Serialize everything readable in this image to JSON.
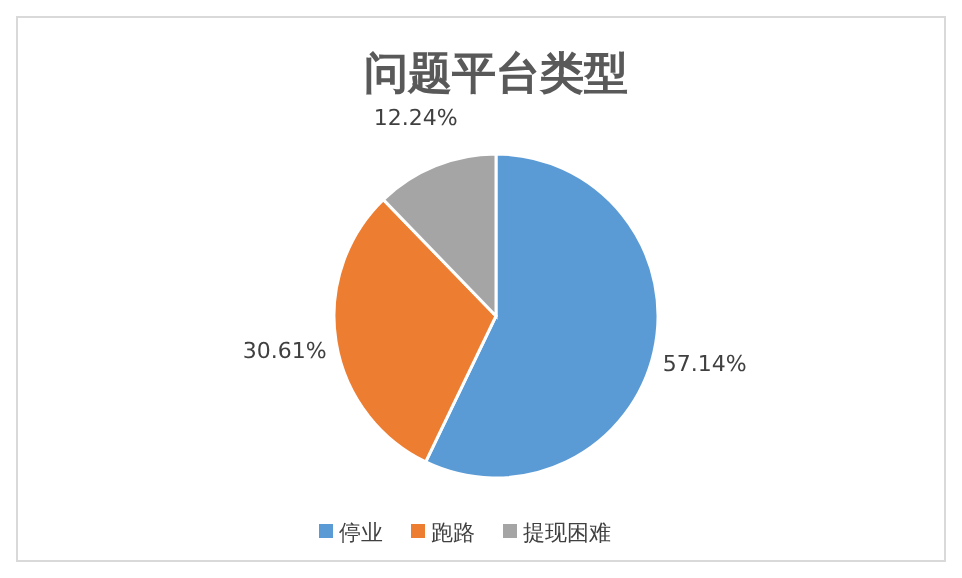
{
  "chart_data": {
    "type": "pie",
    "title": "问题平台类型",
    "categories": [
      "停业",
      "跑路",
      "提现困难"
    ],
    "values": [
      57.14,
      30.61,
      12.24
    ],
    "colors": [
      "#5b9bd5",
      "#ed7d31",
      "#a5a5a5"
    ],
    "value_labels": [
      "57.14%",
      "30.61%",
      "12.24%"
    ],
    "legend": "bottom"
  }
}
